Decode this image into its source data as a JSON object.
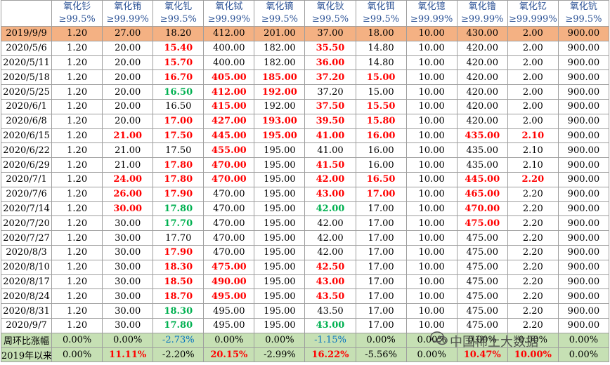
{
  "watermark": "中国稀土大数据",
  "header": {
    "columns": [
      {
        "name": "氧化钐",
        "purity": "≥99.5%"
      },
      {
        "name": "氧化铕",
        "purity": "≥99.99%"
      },
      {
        "name": "氧化钆",
        "purity": "≥99.5%"
      },
      {
        "name": "氧化铽",
        "purity": "≥99.99%"
      },
      {
        "name": "氧化镝",
        "purity": "≥99.5%"
      },
      {
        "name": "氧化钬",
        "purity": "≥99.5%"
      },
      {
        "name": "氧化铒",
        "purity": "≥99.5%"
      },
      {
        "name": "氧化镱",
        "purity": "≥99.99%"
      },
      {
        "name": "氧化镥",
        "purity": "≥99.99%"
      },
      {
        "name": "氧化钇",
        "purity": "≥99.999%"
      },
      {
        "name": "氧化钪",
        "purity": "≥99.5%"
      }
    ]
  },
  "table": {
    "rows": [
      {
        "label": "2019/9/9",
        "style": "base",
        "cells": [
          "1.20",
          "27.00",
          "18.20",
          "412.00",
          "201.00",
          "37.00",
          "18.00",
          "10.00",
          "430.00",
          "2.00",
          "900.00"
        ]
      },
      {
        "label": "2020/5/6",
        "cells": [
          "1.20",
          "20.00",
          "15.40",
          "400.00",
          "182.00",
          "35.50",
          "14.80",
          "10.00",
          "420.00",
          "2.00",
          "900.00"
        ],
        "red": [
          2,
          5
        ]
      },
      {
        "label": "2020/5/11",
        "cells": [
          "1.20",
          "20.00",
          "15.70",
          "400.00",
          "182.00",
          "36.00",
          "14.80",
          "10.00",
          "420.00",
          "2.00",
          "900.00"
        ],
        "red": [
          2,
          5
        ]
      },
      {
        "label": "2020/5/18",
        "cells": [
          "1.20",
          "20.00",
          "16.70",
          "405.00",
          "185.00",
          "37.20",
          "15.00",
          "10.00",
          "420.00",
          "2.00",
          "900.00"
        ],
        "red": [
          2,
          3,
          4,
          5,
          6
        ]
      },
      {
        "label": "2020/5/25",
        "cells": [
          "1.20",
          "20.00",
          "16.50",
          "412.00",
          "192.00",
          "37.20",
          "15.00",
          "10.00",
          "420.00",
          "2.00",
          "900.00"
        ],
        "red": [
          3,
          4
        ],
        "green": [
          2
        ]
      },
      {
        "label": "2020/6/1",
        "cells": [
          "1.20",
          "20.00",
          "16.50",
          "415.00",
          "192.00",
          "37.50",
          "15.50",
          "10.00",
          "420.00",
          "2.00",
          "900.00"
        ],
        "red": [
          3,
          5,
          6
        ]
      },
      {
        "label": "2020/6/8",
        "cells": [
          "1.20",
          "20.00",
          "17.00",
          "427.00",
          "193.00",
          "39.50",
          "15.80",
          "10.00",
          "420.00",
          "2.00",
          "900.00"
        ],
        "red": [
          2,
          3,
          4,
          5,
          6
        ]
      },
      {
        "label": "2020/6/15",
        "cells": [
          "1.20",
          "21.00",
          "17.50",
          "445.00",
          "195.00",
          "41.00",
          "16.00",
          "10.00",
          "435.00",
          "2.10",
          "900.00"
        ],
        "red": [
          1,
          2,
          3,
          4,
          5,
          6,
          8,
          9
        ]
      },
      {
        "label": "2020/6/22",
        "cells": [
          "1.20",
          "21.00",
          "17.50",
          "455.00",
          "195.00",
          "41.00",
          "16.00",
          "10.00",
          "435.00",
          "2.10",
          "900.00"
        ],
        "red": [
          3
        ]
      },
      {
        "label": "2020/6/29",
        "cells": [
          "1.20",
          "21.00",
          "17.80",
          "470.00",
          "195.00",
          "41.50",
          "16.00",
          "10.00",
          "435.00",
          "2.10",
          "900.00"
        ],
        "red": [
          2,
          3,
          5
        ]
      },
      {
        "label": "2020/7/1",
        "cells": [
          "1.20",
          "24.00",
          "17.80",
          "470.00",
          "195.00",
          "42.00",
          "16.50",
          "10.00",
          "445.00",
          "2.20",
          "900.00"
        ],
        "red": [
          1,
          2,
          3,
          5,
          6,
          8,
          9
        ]
      },
      {
        "label": "2020/7/6",
        "cells": [
          "1.20",
          "26.00",
          "17.90",
          "470.00",
          "195.00",
          "43.00",
          "17.00",
          "10.00",
          "465.00",
          "2.20",
          "900.00"
        ],
        "red": [
          1,
          2,
          5,
          6,
          8
        ]
      },
      {
        "label": "2020/7/14",
        "cells": [
          "1.20",
          "30.00",
          "17.80",
          "470.00",
          "195.00",
          "42.00",
          "17.00",
          "10.00",
          "470.00",
          "2.20",
          "900.00"
        ],
        "red": [
          1,
          8
        ],
        "green": [
          2,
          5
        ]
      },
      {
        "label": "2020/7/20",
        "cells": [
          "1.20",
          "30.00",
          "17.70",
          "470.00",
          "195.00",
          "42.00",
          "17.00",
          "10.00",
          "475.00",
          "2.20",
          "900.00"
        ],
        "red": [
          8
        ],
        "green": [
          2
        ]
      },
      {
        "label": "2020/7/27",
        "cells": [
          "1.20",
          "30.00",
          "17.70",
          "470.00",
          "195.00",
          "42.00",
          "17.00",
          "10.00",
          "475.00",
          "2.20",
          "900.00"
        ]
      },
      {
        "label": "2020/8/3",
        "cells": [
          "1.20",
          "30.00",
          "17.90",
          "470.00",
          "195.00",
          "42.00",
          "17.00",
          "10.00",
          "475.00",
          "2.20",
          "900.00"
        ],
        "red": [
          2
        ]
      },
      {
        "label": "2020/8/10",
        "cells": [
          "1.20",
          "30.00",
          "18.30",
          "475.00",
          "195.00",
          "42.50",
          "17.00",
          "10.00",
          "475.00",
          "2.20",
          "900.00"
        ],
        "red": [
          2,
          3,
          5
        ]
      },
      {
        "label": "2020/8/17",
        "cells": [
          "1.20",
          "30.00",
          "18.50",
          "490.00",
          "195.00",
          "43.00",
          "17.00",
          "10.00",
          "475.00",
          "2.20",
          "900.00"
        ],
        "red": [
          2,
          3,
          5
        ]
      },
      {
        "label": "2020/8/24",
        "cells": [
          "1.20",
          "30.00",
          "18.70",
          "495.00",
          "195.00",
          "43.50",
          "17.00",
          "10.00",
          "475.00",
          "2.20",
          "900.00"
        ],
        "red": [
          2,
          3,
          5
        ]
      },
      {
        "label": "2020/8/31",
        "cells": [
          "1.20",
          "30.00",
          "18.30",
          "495.00",
          "195.00",
          "43.50",
          "17.00",
          "10.00",
          "475.00",
          "2.20",
          "900.00"
        ],
        "green": [
          2
        ]
      },
      {
        "label": "2020/9/7",
        "cells": [
          "1.20",
          "30.00",
          "17.80",
          "495.00",
          "195.00",
          "43.00",
          "17.00",
          "10.00",
          "475.00",
          "2.20",
          "900.00"
        ],
        "green": [
          2,
          5
        ]
      },
      {
        "label": "周环比涨幅",
        "style": "summary",
        "cells": [
          "0.00%",
          "0.00%",
          "-2.73%",
          "0.00%",
          "0.00%",
          "-1.15%",
          "0.00%",
          "0.00%",
          "0.00%",
          "0.00%",
          "0.00%"
        ],
        "blue": [
          2,
          5
        ]
      },
      {
        "label": "2019年以来涨幅",
        "style": "summary",
        "cells": [
          "0.00%",
          "11.11%",
          "-2.20%",
          "20.15%",
          "-2.99%",
          "16.22%",
          "-5.56%",
          "0.00%",
          "10.47%",
          "10.00%",
          "0.00%"
        ],
        "red": [
          1,
          3,
          5,
          8,
          9
        ]
      }
    ]
  }
}
